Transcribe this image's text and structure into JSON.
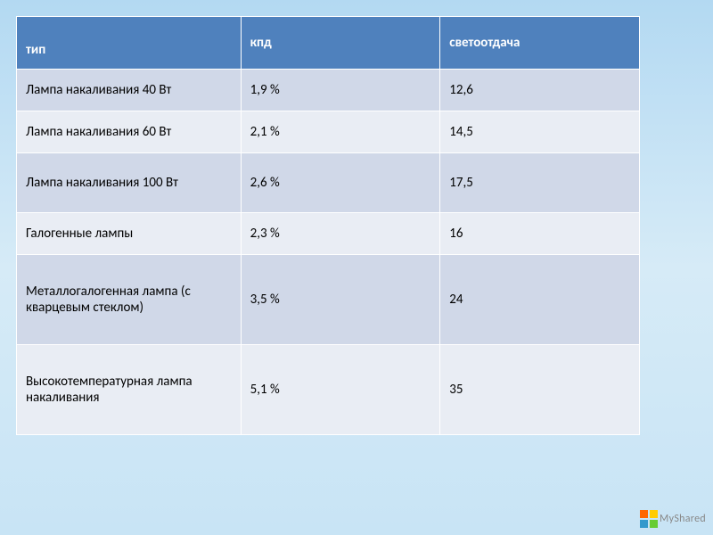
{
  "table": {
    "header_bg": "#4f81bd",
    "header_color": "#ffffff",
    "row_odd_bg": "#d0d8e8",
    "row_even_bg": "#e9edf4",
    "border_color": "#ffffff",
    "font_size": 15,
    "columns": [
      {
        "key": "type",
        "label": "тип",
        "width": "36%"
      },
      {
        "key": "kpd",
        "label": "кпд",
        "width": "32%"
      },
      {
        "key": "light",
        "label": "светоотдача",
        "width": "32%"
      }
    ],
    "rows": [
      {
        "type": "Лампа накаливания 40 Вт",
        "kpd": "1,9 %",
        "light": "12,6",
        "height": "normal"
      },
      {
        "type": "Лампа накаливания 60 Вт",
        "kpd": "2,1 %",
        "light": "14,5",
        "height": "normal"
      },
      {
        "type": "Лампа накаливания 100 Вт",
        "kpd": "2,6 %",
        "light": "17,5",
        "height": "tall"
      },
      {
        "type": "Галогенные лампы",
        "kpd": "2,3 %",
        "light": "16",
        "height": "normal"
      },
      {
        "type": "Металлогалогенная лампа (с кварцевым стеклом)",
        "kpd": "3,5 %",
        "light": "24",
        "height": "xtall"
      },
      {
        "type": "Высокотемпературная лампа накаливания",
        "kpd": "5,1 %",
        "light": "35",
        "height": "xtall"
      }
    ]
  },
  "background": {
    "gradient_top": "#b3d9f2",
    "gradient_mid": "#d6ebf7",
    "gradient_bottom": "#c8e4f5"
  },
  "logo": {
    "text": "MyShared",
    "colors": [
      "#ff6600",
      "#ffcc00",
      "#3399cc",
      "#66cc33"
    ]
  }
}
